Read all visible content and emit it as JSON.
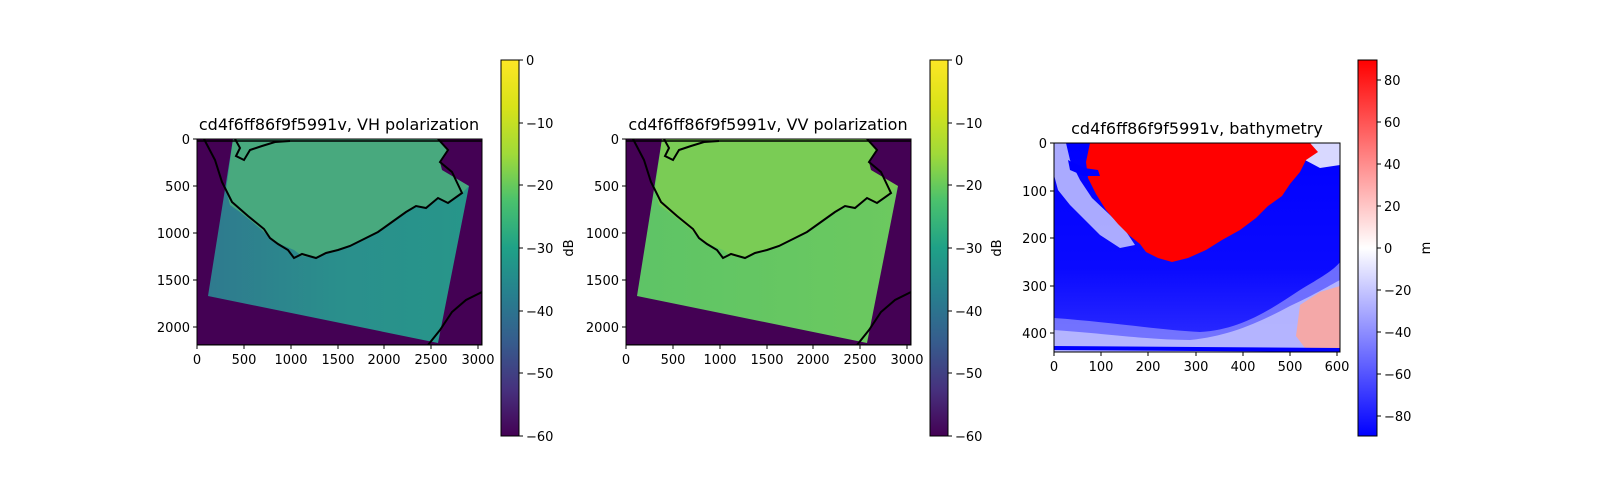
{
  "chart_data": [
    {
      "type": "heatmap",
      "title": "cd4f6ff86f9f5991v, VH polarization",
      "xlim": [
        0,
        3050
      ],
      "ylim": [
        2200,
        0
      ],
      "xticks": [
        0,
        500,
        1000,
        1500,
        2000,
        2500,
        3000
      ],
      "yticks": [
        0,
        500,
        1000,
        1500,
        2000
      ],
      "colorbar": {
        "colormap": "viridis",
        "label": "dB",
        "range": [
          -60,
          0
        ],
        "ticks": [
          0,
          -10,
          -20,
          -30,
          -40,
          -50,
          -60
        ]
      },
      "swath_corners": [
        [
          380,
          0
        ],
        [
          2880,
          500
        ],
        [
          2550,
          2160
        ],
        [
          120,
          1660
        ]
      ],
      "land_value_db": -19,
      "sea_value_db": -29,
      "nodata_value_db": -60
    },
    {
      "type": "heatmap",
      "title": "cd4f6ff86f9f5991v, VV polarization",
      "xlim": [
        0,
        3050
      ],
      "ylim": [
        2200,
        0
      ],
      "xticks": [
        0,
        500,
        1000,
        1500,
        2000,
        2500,
        3000
      ],
      "yticks": [
        0,
        500,
        1000,
        1500,
        2000
      ],
      "colorbar": {
        "colormap": "viridis",
        "label": "dB",
        "range": [
          -60,
          0
        ],
        "ticks": [
          0,
          -10,
          -20,
          -30,
          -40,
          -50,
          -60
        ]
      },
      "swath_corners": [
        [
          380,
          0
        ],
        [
          2880,
          500
        ],
        [
          2550,
          2160
        ],
        [
          120,
          1660
        ]
      ],
      "land_value_db": -14,
      "sea_value_db": -17,
      "nodata_value_db": -60
    },
    {
      "type": "heatmap",
      "title": "cd4f6ff86f9f5991v, bathymetry",
      "xlim": [
        0,
        605
      ],
      "ylim": [
        440,
        0
      ],
      "xticks": [
        0,
        100,
        200,
        300,
        400,
        500,
        600
      ],
      "yticks": [
        0,
        100,
        200,
        300,
        400
      ],
      "colorbar": {
        "colormap": "bwr",
        "label": "m",
        "range": [
          -90,
          90
        ],
        "ticks": [
          80,
          60,
          40,
          20,
          0,
          -20,
          -40,
          -60,
          -80
        ]
      }
    }
  ]
}
